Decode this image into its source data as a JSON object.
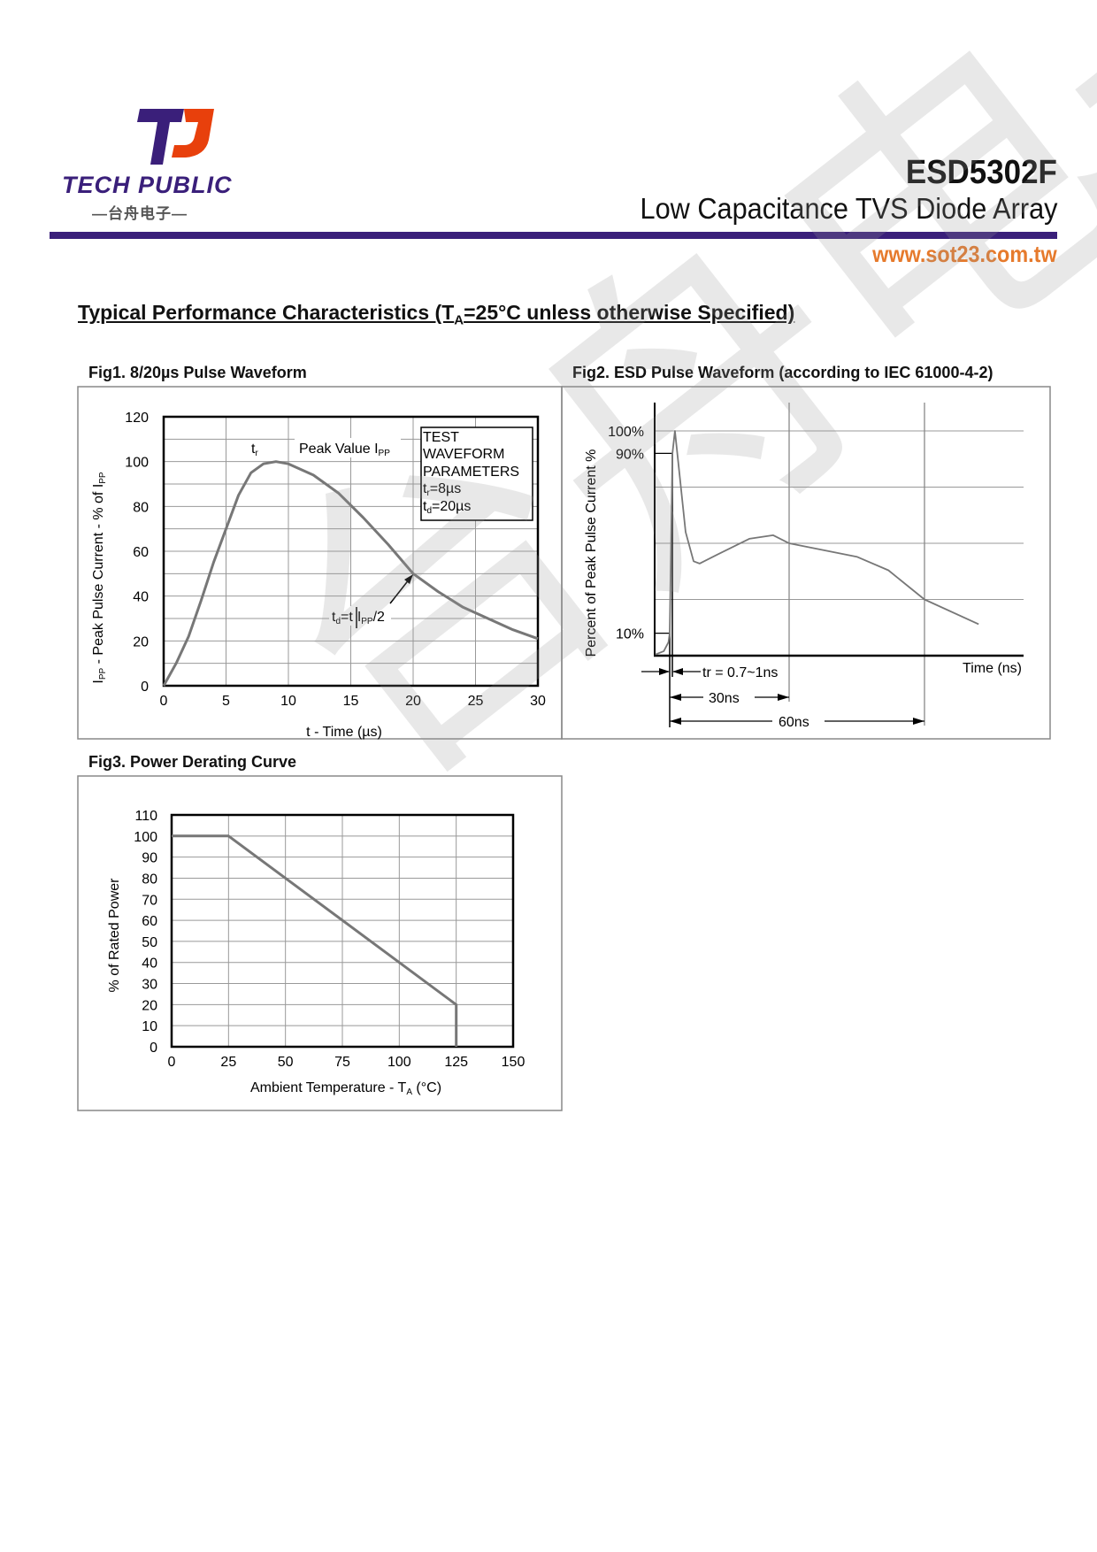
{
  "header": {
    "logo_text": "TECH PUBLIC",
    "logo_cn": "—台舟电子—",
    "part_number": "ESD5302F",
    "subtitle": "Low Capacitance TVS Diode Array",
    "url": "www.sot23.com.tw",
    "colors": {
      "brand_purple": "#3a1f7a",
      "brand_orange": "#e8400c",
      "url_orange": "#e67a2c"
    }
  },
  "section": {
    "heading_pre": "Typical Performance Characteristics (T",
    "heading_sub": "A",
    "heading_post": "=25°C unless otherwise Specified)"
  },
  "watermark": "台舟电子",
  "chart_data": [
    {
      "type": "line",
      "title": "Fig1.   8/20µs Pulse Waveform",
      "xlabel": "t - Time (µs)",
      "ylabel": {
        "p1": "I",
        "p1sub": "PP",
        "p2": " - Peak Pulse Current - % of I",
        "p2sub": "PP"
      },
      "xlim": [
        0,
        30
      ],
      "ylim": [
        0,
        120
      ],
      "xticks": [
        0,
        5,
        10,
        15,
        20,
        25,
        30
      ],
      "yticks": [
        0,
        20,
        40,
        60,
        80,
        100,
        120
      ],
      "grid": true,
      "x": [
        0,
        1,
        2,
        3,
        4,
        5,
        6,
        7,
        8,
        9,
        10,
        12,
        14,
        16,
        18,
        20,
        22,
        24,
        26,
        28,
        30
      ],
      "y": [
        0,
        10,
        22,
        38,
        55,
        70,
        85,
        95,
        99,
        100,
        99,
        94,
        86,
        75,
        63,
        50,
        42,
        35,
        30,
        25,
        21
      ],
      "annotations": {
        "tr": "t",
        "tr_sub": "r",
        "peak": "Peak Value I",
        "peak_sub": "PP",
        "td_pre": "t",
        "td_sub": "d",
        "td_mid": "=t",
        "td_i": "I",
        "td_i_sub": "PP",
        "td_post": "/2",
        "box": [
          "TEST",
          "WAVEFORM",
          "PARAMETERS"
        ],
        "box_tr": "t",
        "box_tr_sub": "r",
        "box_tr_val": "=8µs",
        "box_td": "t",
        "box_td_sub": "d",
        "box_td_val": "=20µs"
      }
    },
    {
      "type": "line",
      "title": "Fig2. ESD Pulse Waveform (according to IEC 61000-4-2)",
      "xlabel": "Time (ns)",
      "ylabel": "Percent of Peak Pulse Current %",
      "ytick_labels": [
        {
          "v": 100,
          "label": "100%"
        },
        {
          "v": 90,
          "label": "90%"
        },
        {
          "v": 10,
          "label": "10%"
        }
      ],
      "grid": true,
      "x": [
        -3.6,
        -1.5,
        -0.3,
        0,
        0.7,
        1.3,
        2.5,
        4,
        6,
        7.5,
        12,
        20,
        26,
        30,
        45,
        52,
        60,
        72
      ],
      "y": [
        0.5,
        2,
        6,
        10,
        90,
        100,
        80,
        55,
        42,
        41,
        45,
        52,
        53.6,
        50,
        44,
        38,
        25,
        14
      ],
      "annotations": {
        "tr": "tr = 0.7~1ns",
        "d30": "30ns",
        "d60": "60ns"
      }
    },
    {
      "type": "line",
      "title": "Fig3.   Power Derating Curve",
      "xlabel": {
        "pre": "Ambient Temperature  - T",
        "sub": "A",
        "post": " (°C)"
      },
      "ylabel": "% of Rated Power",
      "xlim": [
        0,
        150
      ],
      "ylim": [
        0,
        110
      ],
      "xticks": [
        0,
        25,
        50,
        75,
        100,
        125,
        150
      ],
      "yticks": [
        0,
        10,
        20,
        30,
        40,
        50,
        60,
        70,
        80,
        90,
        100,
        110
      ],
      "grid": true,
      "x": [
        0,
        25,
        125,
        125
      ],
      "y": [
        100,
        100,
        20,
        0
      ]
    }
  ]
}
